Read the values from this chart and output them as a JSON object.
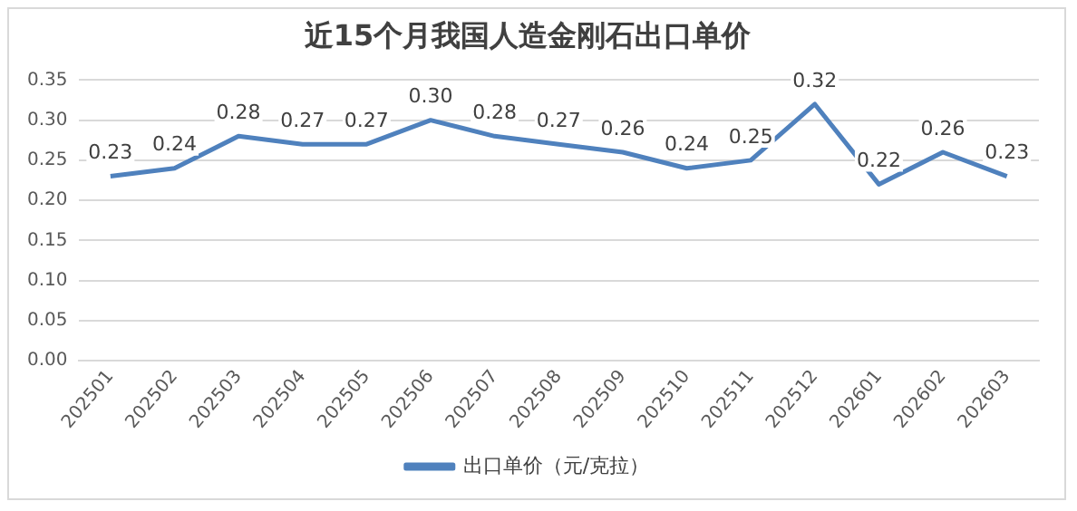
{
  "chart_data": {
    "type": "line",
    "title": "近15个月我国人造金刚石出口单价",
    "categories": [
      "202501",
      "202502",
      "202503",
      "202504",
      "202505",
      "202506",
      "202507",
      "202508",
      "202509",
      "202510",
      "202511",
      "202512",
      "202601",
      "202602",
      "202603"
    ],
    "series": [
      {
        "name": "出口单价（元/克拉）",
        "color": "#4f81bd",
        "values": [
          0.23,
          0.24,
          0.28,
          0.27,
          0.27,
          0.3,
          0.28,
          0.27,
          0.26,
          0.24,
          0.25,
          0.32,
          0.22,
          0.26,
          0.23
        ],
        "value_labels": [
          "0.23",
          "0.24",
          "0.28",
          "0.27",
          "0.27",
          "0.30",
          "0.28",
          "0.27",
          "0.26",
          "0.24",
          "0.25",
          "0.32",
          "0.22",
          "0.26",
          "0.23"
        ]
      }
    ],
    "ylim": [
      0,
      0.35
    ],
    "yticks": [
      {
        "value": 0,
        "label": "0.00"
      },
      {
        "value": 0.05,
        "label": "0.05"
      },
      {
        "value": 0.1,
        "label": "0.10"
      },
      {
        "value": 0.15,
        "label": "0.15"
      },
      {
        "value": 0.2,
        "label": "0.20"
      },
      {
        "value": 0.25,
        "label": "0.25"
      },
      {
        "value": 0.3,
        "label": "0.30"
      },
      {
        "value": 0.35,
        "label": "0.35"
      }
    ],
    "grid": "y",
    "legend": "bottom",
    "marker": "none",
    "line_style": "solid"
  }
}
